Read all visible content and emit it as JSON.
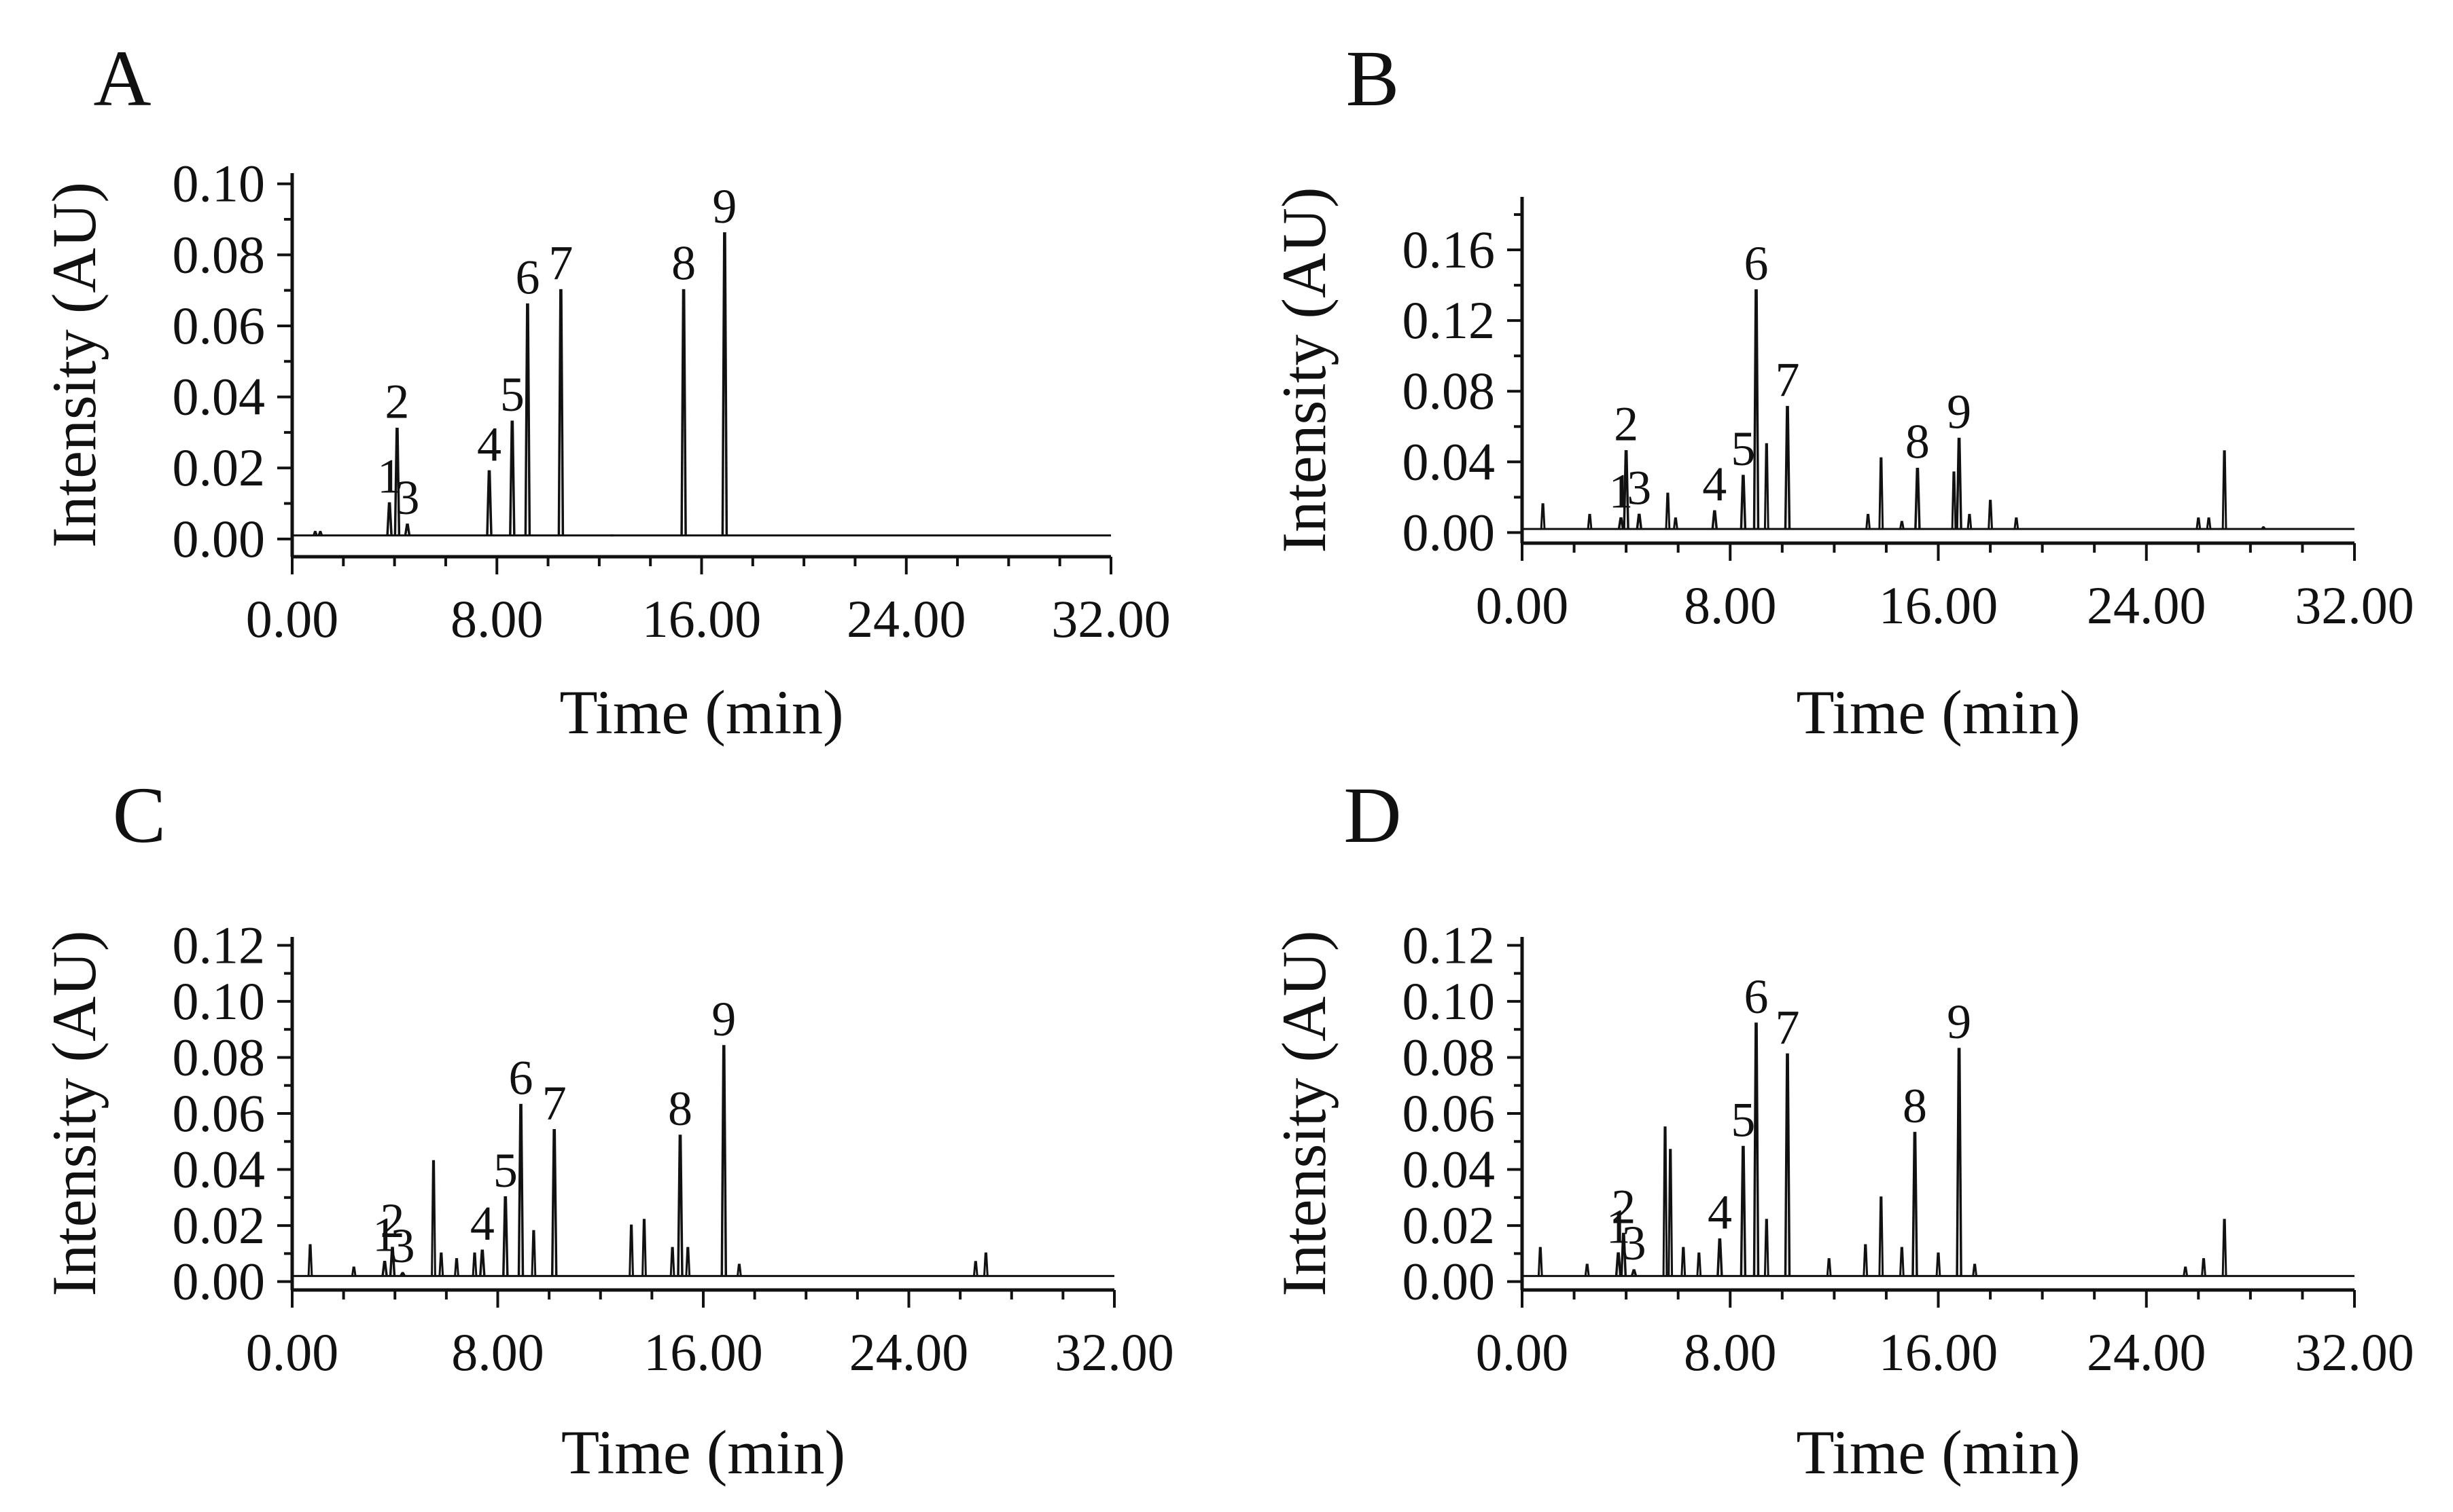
{
  "chart_data": [
    {
      "panel": "A",
      "type": "line",
      "title": "",
      "xlabel": "Time (min)",
      "ylabel": "Intensity (AU)",
      "xlim": [
        0,
        32
      ],
      "ylim": [
        -0.005,
        0.103
      ],
      "xticks": [
        0,
        8,
        16,
        24,
        32
      ],
      "xtick_labels": [
        "0.00",
        "8.00",
        "16.00",
        "24.00",
        "32.00"
      ],
      "yticks": [
        0,
        0.02,
        0.04,
        0.06,
        0.08,
        0.1
      ],
      "ytick_labels": [
        "0.00",
        "0.02",
        "0.04",
        "0.06",
        "0.08",
        "0.10"
      ],
      "baseline": 0.001,
      "peaks": [
        {
          "label": "1",
          "x": 3.8,
          "y": 0.01
        },
        {
          "label": "2",
          "x": 4.1,
          "y": 0.031
        },
        {
          "label": "3",
          "x": 4.5,
          "y": 0.004
        },
        {
          "label": "4",
          "x": 7.7,
          "y": 0.019
        },
        {
          "label": "5",
          "x": 8.6,
          "y": 0.033
        },
        {
          "label": "6",
          "x": 9.2,
          "y": 0.066
        },
        {
          "label": "7",
          "x": 10.5,
          "y": 0.07
        },
        {
          "label": "8",
          "x": 15.3,
          "y": 0.07
        },
        {
          "label": "9",
          "x": 16.9,
          "y": 0.086
        }
      ],
      "minor_peaks": [
        {
          "x": 0.9,
          "y": 0.002
        },
        {
          "x": 1.1,
          "y": 0.002
        },
        {
          "x": 12.5,
          "y": 0.001
        }
      ]
    },
    {
      "panel": "B",
      "type": "line",
      "title": "",
      "xlabel": "Time (min)",
      "ylabel": "Intensity (AU)",
      "xlim": [
        0,
        32
      ],
      "ylim": [
        -0.006,
        0.19
      ],
      "xticks": [
        0,
        8,
        16,
        24,
        32
      ],
      "xtick_labels": [
        "0.00",
        "8.00",
        "16.00",
        "24.00",
        "32.00"
      ],
      "yticks": [
        0,
        0.04,
        0.08,
        0.12,
        0.16
      ],
      "ytick_labels": [
        "0.00",
        "0.04",
        "0.08",
        "0.12",
        "0.16"
      ],
      "baseline": 0.002,
      "peaks": [
        {
          "label": "1",
          "x": 3.8,
          "y": 0.008
        },
        {
          "label": "2",
          "x": 4.0,
          "y": 0.046
        },
        {
          "label": "3",
          "x": 4.5,
          "y": 0.01
        },
        {
          "label": "4",
          "x": 7.4,
          "y": 0.012
        },
        {
          "label": "5",
          "x": 8.5,
          "y": 0.032
        },
        {
          "label": "6",
          "x": 9.0,
          "y": 0.137
        },
        {
          "label": "7",
          "x": 10.2,
          "y": 0.071
        },
        {
          "label": "8",
          "x": 15.2,
          "y": 0.036
        },
        {
          "label": "9",
          "x": 16.8,
          "y": 0.053
        }
      ],
      "minor_peaks": [
        {
          "x": 0.8,
          "y": 0.016
        },
        {
          "x": 2.6,
          "y": 0.01
        },
        {
          "x": 5.6,
          "y": 0.022
        },
        {
          "x": 5.9,
          "y": 0.008
        },
        {
          "x": 9.4,
          "y": 0.05
        },
        {
          "x": 13.3,
          "y": 0.01
        },
        {
          "x": 13.8,
          "y": 0.042
        },
        {
          "x": 14.6,
          "y": 0.006
        },
        {
          "x": 16.6,
          "y": 0.034
        },
        {
          "x": 17.2,
          "y": 0.01
        },
        {
          "x": 18.0,
          "y": 0.018
        },
        {
          "x": 19.0,
          "y": 0.008
        },
        {
          "x": 26.0,
          "y": 0.008
        },
        {
          "x": 26.4,
          "y": 0.008
        },
        {
          "x": 27.0,
          "y": 0.046
        },
        {
          "x": 28.5,
          "y": 0.003
        }
      ]
    },
    {
      "panel": "C",
      "type": "line",
      "title": "",
      "xlabel": "Time (min)",
      "ylabel": "Intensity (AU)",
      "xlim": [
        0,
        32
      ],
      "ylim": [
        -0.003,
        0.123
      ],
      "xticks": [
        0,
        8,
        16,
        24,
        32
      ],
      "xtick_labels": [
        "0.00",
        "8.00",
        "16.00",
        "24.00",
        "32.00"
      ],
      "yticks": [
        0,
        0.02,
        0.04,
        0.06,
        0.08,
        0.1,
        0.12
      ],
      "ytick_labels": [
        "0.00",
        "0.02",
        "0.04",
        "0.06",
        "0.08",
        "0.10",
        "0.12"
      ],
      "baseline": 0.002,
      "peaks": [
        {
          "label": "1",
          "x": 3.6,
          "y": 0.007
        },
        {
          "label": "2",
          "x": 3.9,
          "y": 0.012
        },
        {
          "label": "3",
          "x": 4.3,
          "y": 0.003
        },
        {
          "label": "4",
          "x": 7.4,
          "y": 0.011
        },
        {
          "label": "5",
          "x": 8.3,
          "y": 0.03
        },
        {
          "label": "6",
          "x": 8.9,
          "y": 0.063
        },
        {
          "label": "7",
          "x": 10.2,
          "y": 0.054
        },
        {
          "label": "8",
          "x": 15.1,
          "y": 0.052
        },
        {
          "label": "9",
          "x": 16.8,
          "y": 0.084
        }
      ],
      "minor_peaks": [
        {
          "x": 0.7,
          "y": 0.013
        },
        {
          "x": 2.4,
          "y": 0.005
        },
        {
          "x": 5.5,
          "y": 0.043
        },
        {
          "x": 5.8,
          "y": 0.01
        },
        {
          "x": 6.4,
          "y": 0.008
        },
        {
          "x": 7.1,
          "y": 0.01
        },
        {
          "x": 9.4,
          "y": 0.018
        },
        {
          "x": 13.2,
          "y": 0.02
        },
        {
          "x": 13.7,
          "y": 0.022
        },
        {
          "x": 14.8,
          "y": 0.012
        },
        {
          "x": 15.4,
          "y": 0.012
        },
        {
          "x": 17.4,
          "y": 0.006
        },
        {
          "x": 26.6,
          "y": 0.007
        },
        {
          "x": 27.0,
          "y": 0.01
        }
      ]
    },
    {
      "panel": "D",
      "type": "line",
      "title": "",
      "xlabel": "Time (min)",
      "ylabel": "Intensity (AU)",
      "xlim": [
        0,
        32
      ],
      "ylim": [
        -0.003,
        0.123
      ],
      "xticks": [
        0,
        8,
        16,
        24,
        32
      ],
      "xtick_labels": [
        "0.00",
        "8.00",
        "16.00",
        "24.00",
        "32.00"
      ],
      "yticks": [
        0,
        0.02,
        0.04,
        0.06,
        0.08,
        0.1,
        0.12
      ],
      "ytick_labels": [
        "0.00",
        "0.02",
        "0.04",
        "0.06",
        "0.08",
        "0.10",
        "0.12"
      ],
      "baseline": 0.002,
      "peaks": [
        {
          "label": "1",
          "x": 3.7,
          "y": 0.01
        },
        {
          "label": "2",
          "x": 3.9,
          "y": 0.017
        },
        {
          "label": "3",
          "x": 4.3,
          "y": 0.004
        },
        {
          "label": "4",
          "x": 7.6,
          "y": 0.015
        },
        {
          "label": "5",
          "x": 8.5,
          "y": 0.048
        },
        {
          "label": "6",
          "x": 9.0,
          "y": 0.092
        },
        {
          "label": "7",
          "x": 10.2,
          "y": 0.081
        },
        {
          "label": "8",
          "x": 15.1,
          "y": 0.053
        },
        {
          "label": "9",
          "x": 16.8,
          "y": 0.083
        }
      ],
      "minor_peaks": [
        {
          "x": 0.7,
          "y": 0.012
        },
        {
          "x": 2.5,
          "y": 0.006
        },
        {
          "x": 5.5,
          "y": 0.055
        },
        {
          "x": 5.7,
          "y": 0.047
        },
        {
          "x": 6.2,
          "y": 0.012
        },
        {
          "x": 6.8,
          "y": 0.01
        },
        {
          "x": 9.4,
          "y": 0.022
        },
        {
          "x": 11.8,
          "y": 0.008
        },
        {
          "x": 13.2,
          "y": 0.013
        },
        {
          "x": 13.8,
          "y": 0.03
        },
        {
          "x": 14.6,
          "y": 0.012
        },
        {
          "x": 16.0,
          "y": 0.01
        },
        {
          "x": 17.4,
          "y": 0.006
        },
        {
          "x": 25.5,
          "y": 0.005
        },
        {
          "x": 26.2,
          "y": 0.008
        },
        {
          "x": 27.0,
          "y": 0.022
        }
      ]
    }
  ]
}
